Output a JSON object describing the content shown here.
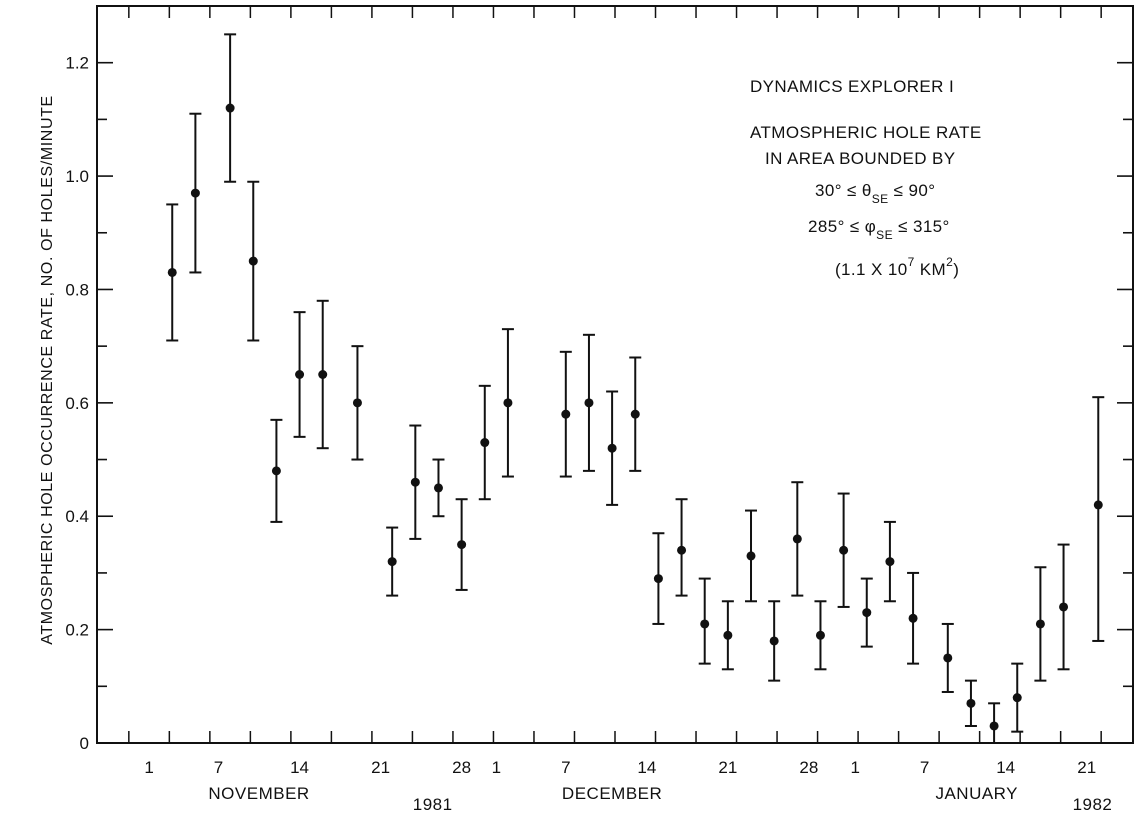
{
  "chart_data": {
    "type": "scatter",
    "ylabel": "ATMOSPHERIC HOLE OCCURRENCE RATE, NO. OF HOLES/MINUTE",
    "ylim": [
      0,
      1.3
    ],
    "y_ticks": [
      "0",
      "0.2",
      "0.4",
      "0.6",
      "0.8",
      "1.0",
      "1.2"
    ],
    "y_tick_values": [
      0,
      0.2,
      0.4,
      0.6,
      0.8,
      1.0,
      1.2
    ],
    "x_tick_labels": [
      {
        "day": 1,
        "label": "1"
      },
      {
        "day": 7,
        "label": "7"
      },
      {
        "day": 14,
        "label": "14"
      },
      {
        "day": 21,
        "label": "21"
      },
      {
        "day": 28,
        "label": "28"
      },
      {
        "day": 31,
        "label": "1"
      },
      {
        "day": 37,
        "label": "7"
      },
      {
        "day": 44,
        "label": "14"
      },
      {
        "day": 51,
        "label": "21"
      },
      {
        "day": 58,
        "label": "28"
      },
      {
        "day": 62,
        "label": "1"
      },
      {
        "day": 68,
        "label": "7"
      },
      {
        "day": 75,
        "label": "14"
      },
      {
        "day": 82,
        "label": "21"
      }
    ],
    "xlim": [
      -3.5,
      86
    ],
    "month_labels": [
      {
        "label": "NOVEMBER",
        "day": 10.5
      },
      {
        "label": "DECEMBER",
        "day": 41
      },
      {
        "label": "JANUARY",
        "day": 72.5
      }
    ],
    "year_labels": [
      {
        "label": "1981",
        "day": 25.5
      },
      {
        "label": "1982",
        "day": 82.5
      }
    ],
    "annotation": {
      "line1": "DYNAMICS EXPLORER I",
      "line2": "ATMOSPHERIC HOLE RATE",
      "line3": "IN AREA BOUNDED BY",
      "line4_a": "30° ≤ θ",
      "line4_sub": "SE",
      "line4_b": " ≤ 90°",
      "line5_a": "285° ≤ φ",
      "line5_sub": "SE",
      "line5_b": " ≤ 315°",
      "line6_a": "(1.1 X 10",
      "line6_sup": "7",
      "line6_b": " KM",
      "line6_sup2": "2",
      "line6_c": ")"
    },
    "points": [
      {
        "x": 3,
        "y": 0.83,
        "low": 0.71,
        "high": 0.95
      },
      {
        "x": 5,
        "y": 0.97,
        "low": 0.83,
        "high": 1.11
      },
      {
        "x": 8,
        "y": 1.12,
        "low": 0.99,
        "high": 1.25
      },
      {
        "x": 10,
        "y": 0.85,
        "low": 0.71,
        "high": 0.99
      },
      {
        "x": 12,
        "y": 0.48,
        "low": 0.39,
        "high": 0.57
      },
      {
        "x": 14,
        "y": 0.65,
        "low": 0.54,
        "high": 0.76
      },
      {
        "x": 16,
        "y": 0.65,
        "low": 0.52,
        "high": 0.78
      },
      {
        "x": 19,
        "y": 0.6,
        "low": 0.5,
        "high": 0.7
      },
      {
        "x": 22,
        "y": 0.32,
        "low": 0.26,
        "high": 0.38
      },
      {
        "x": 24,
        "y": 0.46,
        "low": 0.36,
        "high": 0.56
      },
      {
        "x": 26,
        "y": 0.45,
        "low": 0.4,
        "high": 0.5
      },
      {
        "x": 28,
        "y": 0.35,
        "low": 0.27,
        "high": 0.43
      },
      {
        "x": 30,
        "y": 0.53,
        "low": 0.43,
        "high": 0.63
      },
      {
        "x": 32,
        "y": 0.6,
        "low": 0.47,
        "high": 0.73
      },
      {
        "x": 37,
        "y": 0.58,
        "low": 0.47,
        "high": 0.69
      },
      {
        "x": 39,
        "y": 0.6,
        "low": 0.48,
        "high": 0.72
      },
      {
        "x": 41,
        "y": 0.52,
        "low": 0.42,
        "high": 0.62
      },
      {
        "x": 43,
        "y": 0.58,
        "low": 0.48,
        "high": 0.68
      },
      {
        "x": 45,
        "y": 0.29,
        "low": 0.21,
        "high": 0.37
      },
      {
        "x": 47,
        "y": 0.34,
        "low": 0.26,
        "high": 0.43
      },
      {
        "x": 49,
        "y": 0.21,
        "low": 0.14,
        "high": 0.29
      },
      {
        "x": 51,
        "y": 0.19,
        "low": 0.13,
        "high": 0.25
      },
      {
        "x": 53,
        "y": 0.33,
        "low": 0.25,
        "high": 0.41
      },
      {
        "x": 55,
        "y": 0.18,
        "low": 0.11,
        "high": 0.25
      },
      {
        "x": 57,
        "y": 0.36,
        "low": 0.26,
        "high": 0.46
      },
      {
        "x": 59,
        "y": 0.19,
        "low": 0.13,
        "high": 0.25
      },
      {
        "x": 61,
        "y": 0.34,
        "low": 0.24,
        "high": 0.44
      },
      {
        "x": 63,
        "y": 0.23,
        "low": 0.17,
        "high": 0.29
      },
      {
        "x": 65,
        "y": 0.32,
        "low": 0.25,
        "high": 0.39
      },
      {
        "x": 67,
        "y": 0.22,
        "low": 0.14,
        "high": 0.3
      },
      {
        "x": 70,
        "y": 0.15,
        "low": 0.09,
        "high": 0.21
      },
      {
        "x": 72,
        "y": 0.07,
        "low": 0.03,
        "high": 0.11
      },
      {
        "x": 74,
        "y": 0.03,
        "low": 0.0,
        "high": 0.07
      },
      {
        "x": 76,
        "y": 0.08,
        "low": 0.02,
        "high": 0.14
      },
      {
        "x": 78,
        "y": 0.21,
        "low": 0.11,
        "high": 0.31
      },
      {
        "x": 80,
        "y": 0.24,
        "low": 0.13,
        "high": 0.35
      },
      {
        "x": 83,
        "y": 0.42,
        "low": 0.18,
        "high": 0.61
      }
    ]
  }
}
